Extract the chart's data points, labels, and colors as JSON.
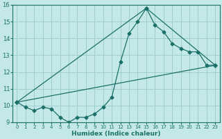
{
  "xlabel": "Humidex (Indice chaleur)",
  "bg_color": "#c4e8e8",
  "grid_color": "#9ecece",
  "line_color": "#1a7068",
  "xlim": [
    -0.5,
    23.5
  ],
  "ylim": [
    9,
    16
  ],
  "xticks": [
    0,
    1,
    2,
    3,
    4,
    5,
    6,
    7,
    8,
    9,
    10,
    11,
    12,
    13,
    14,
    15,
    16,
    17,
    18,
    19,
    20,
    21,
    22,
    23
  ],
  "yticks": [
    9,
    10,
    11,
    12,
    13,
    14,
    15,
    16
  ],
  "series1_x": [
    0,
    1,
    2,
    3,
    4,
    5,
    6,
    7,
    8,
    9,
    10,
    11,
    12,
    13,
    14,
    15,
    16,
    17,
    18,
    19,
    20,
    21,
    22,
    23
  ],
  "series1_y": [
    10.2,
    9.9,
    9.7,
    9.9,
    9.8,
    9.3,
    9.0,
    9.3,
    9.3,
    9.5,
    9.9,
    10.5,
    12.6,
    14.3,
    15.0,
    15.8,
    14.8,
    14.4,
    13.7,
    13.4,
    13.2,
    13.2,
    12.4,
    12.4
  ],
  "series2_x": [
    0,
    15,
    23
  ],
  "series2_y": [
    10.2,
    15.8,
    12.4
  ],
  "series3_x": [
    0,
    23
  ],
  "series3_y": [
    10.2,
    12.4
  ]
}
